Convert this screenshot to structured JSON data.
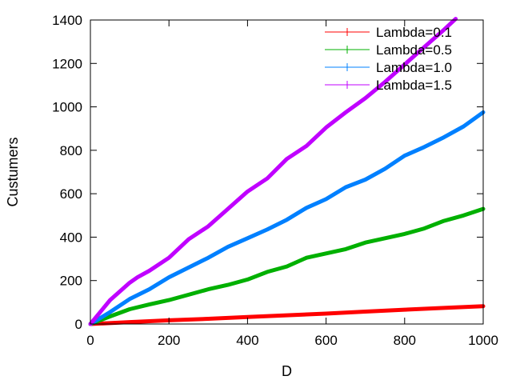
{
  "chart_data": {
    "type": "line",
    "xlabel": "D",
    "ylabel": "Custumers",
    "xlim": [
      0,
      1000
    ],
    "ylim": [
      0,
      1400
    ],
    "xticks": [
      "0",
      "200",
      "400",
      "600",
      "800",
      "1000"
    ],
    "yticks": [
      "0",
      "200",
      "400",
      "600",
      "800",
      "1000",
      "1200",
      "1400"
    ],
    "legend_position": "top-right",
    "grid": false,
    "series": [
      {
        "name": "Lambda=0.1",
        "color": "#ff0000",
        "x": [
          0,
          100,
          200,
          300,
          400,
          500,
          600,
          700,
          800,
          900,
          1000
        ],
        "y": [
          0,
          9,
          17,
          24,
          32,
          40,
          48,
          57,
          66,
          74,
          82
        ]
      },
      {
        "name": "Lambda=0.5",
        "color": "#00b000",
        "x": [
          0,
          50,
          100,
          150,
          200,
          250,
          300,
          350,
          400,
          450,
          500,
          550,
          600,
          650,
          700,
          750,
          800,
          850,
          900,
          950,
          1000
        ],
        "y": [
          0,
          35,
          68,
          90,
          110,
          135,
          160,
          180,
          205,
          240,
          265,
          305,
          325,
          345,
          375,
          395,
          415,
          440,
          475,
          500,
          530
        ]
      },
      {
        "name": "Lambda=1.0",
        "color": "#0080ff",
        "x": [
          0,
          50,
          100,
          150,
          200,
          250,
          300,
          350,
          400,
          450,
          500,
          550,
          600,
          650,
          700,
          750,
          800,
          850,
          900,
          950,
          1000
        ],
        "y": [
          0,
          55,
          115,
          160,
          215,
          260,
          305,
          355,
          395,
          435,
          480,
          535,
          575,
          630,
          665,
          715,
          775,
          815,
          860,
          910,
          975
        ]
      },
      {
        "name": "Lambda=1.5",
        "color": "#c000ff",
        "x": [
          0,
          50,
          100,
          120,
          150,
          200,
          250,
          300,
          350,
          400,
          450,
          500,
          550,
          600,
          650,
          700,
          750,
          800,
          850,
          900,
          930
        ],
        "y": [
          0,
          110,
          190,
          215,
          245,
          305,
          390,
          450,
          530,
          610,
          670,
          760,
          820,
          905,
          975,
          1040,
          1115,
          1195,
          1275,
          1355,
          1405
        ]
      }
    ]
  }
}
